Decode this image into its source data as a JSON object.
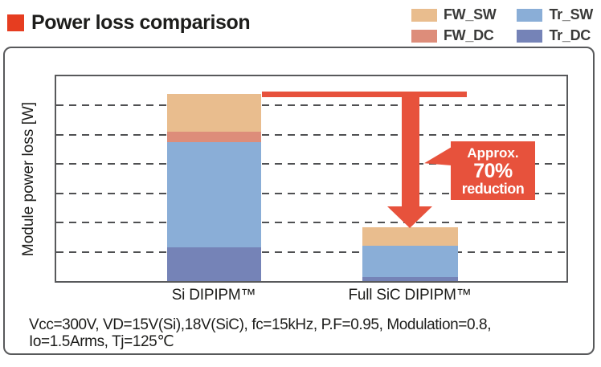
{
  "page": {
    "title": "Power loss comparison"
  },
  "chart_data": {
    "type": "bar",
    "stacked": true,
    "title": "Power loss comparison",
    "categories": [
      "Si DIPIPM™",
      "Full SiC DIPIPM™"
    ],
    "series": [
      {
        "name": "FW_SW",
        "color": "#e9bd8e",
        "values": [
          1.3,
          0.62
        ]
      },
      {
        "name": "FW_DC",
        "color": "#dd8d7a",
        "values": [
          0.35,
          0.0
        ]
      },
      {
        "name": "Tr_SW",
        "color": "#8aaed7",
        "values": [
          3.6,
          1.08
        ]
      },
      {
        "name": "Tr_DC",
        "color": "#7583b7",
        "values": [
          1.15,
          0.14
        ]
      }
    ],
    "stack_order_bottom_to_top": [
      "Tr_DC",
      "Tr_SW",
      "FW_DC",
      "FW_SW"
    ],
    "totals": [
      6.4,
      1.84
    ],
    "ylabel": "Module power loss [W]",
    "xlabel": "",
    "ylim": [
      0,
      7
    ],
    "yticks_labeled": false,
    "gridlines": [
      1,
      2,
      3,
      4,
      5,
      6
    ],
    "grid_style": "dashed",
    "legend_position": "top-right",
    "legend_display_order": [
      "FW_SW",
      "Tr_SW",
      "FW_DC",
      "Tr_DC"
    ],
    "value_note": "Y axis has no numeric tick labels; values are relative, in gridline units (1 = spacing between dashed gridlines)."
  },
  "annotation": {
    "line1": "Approx.",
    "line2": "70%",
    "line3": "reduction",
    "color": "#e7523c"
  },
  "caption": {
    "line1": "Vcc=300V, VD=15V(Si),18V(SiC), fc=15kHz, P.F=0.95, Modulation=0.8,",
    "line2": "Io=1.5Arms, Tj=125℃"
  },
  "colors": {
    "accent_red": "#e7523c",
    "title_bullet": "#e63d20",
    "text": "#1d1d1b",
    "frame": "#58595b"
  }
}
